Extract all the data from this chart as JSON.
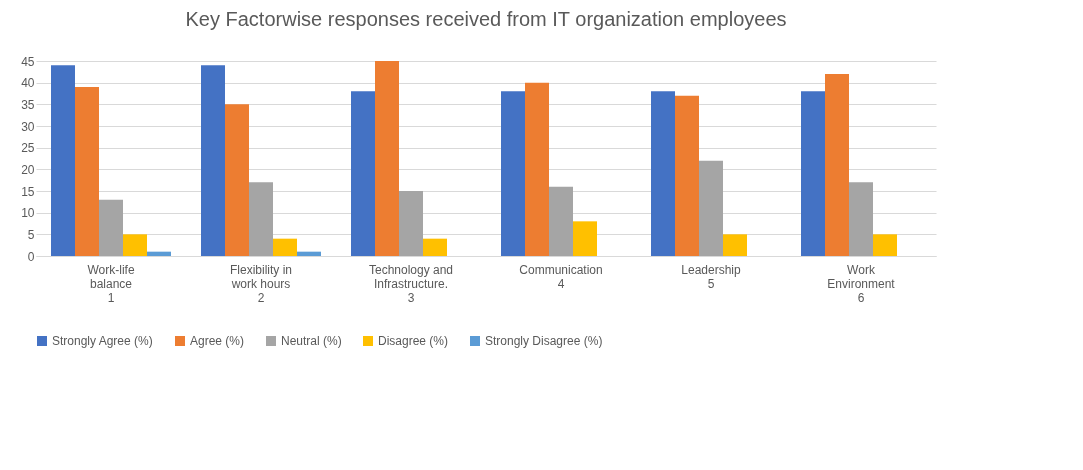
{
  "chart_data": {
    "type": "bar",
    "title": "Key Factorwise responses received from IT organization employees",
    "categories": [
      "Work-life\nbalance\n\n1",
      "Flexibility in\nwork hours\n\n2",
      "Technology and\nInfrastructure.\n\n3",
      "Communication\n\n\n4",
      "Leadership\n\n\n5",
      "Work\nEnvironment\n\n6"
    ],
    "series": [
      {
        "name": "Strongly Agree (%)",
        "color": "#4472c4",
        "values": [
          44,
          44,
          38,
          38,
          38,
          38
        ]
      },
      {
        "name": "Agree (%)",
        "color": "#ed7d31",
        "values": [
          39,
          35,
          45,
          40,
          37,
          42
        ]
      },
      {
        "name": "Neutral (%)",
        "color": "#a5a5a5",
        "values": [
          13,
          17,
          15,
          16,
          22,
          17
        ]
      },
      {
        "name": "Disagree (%)",
        "color": "#ffc000",
        "values": [
          5,
          4,
          4,
          8,
          5,
          5
        ]
      },
      {
        "name": "Strongly Disagree (%)",
        "color": "#5b9bd5",
        "values": [
          1,
          1,
          0,
          0,
          0,
          0
        ]
      }
    ],
    "ylim": [
      0,
      45
    ],
    "yticks": [
      0,
      5,
      10,
      15,
      20,
      25,
      30,
      35,
      40,
      45
    ],
    "grid": "y",
    "legend": "bottom"
  }
}
